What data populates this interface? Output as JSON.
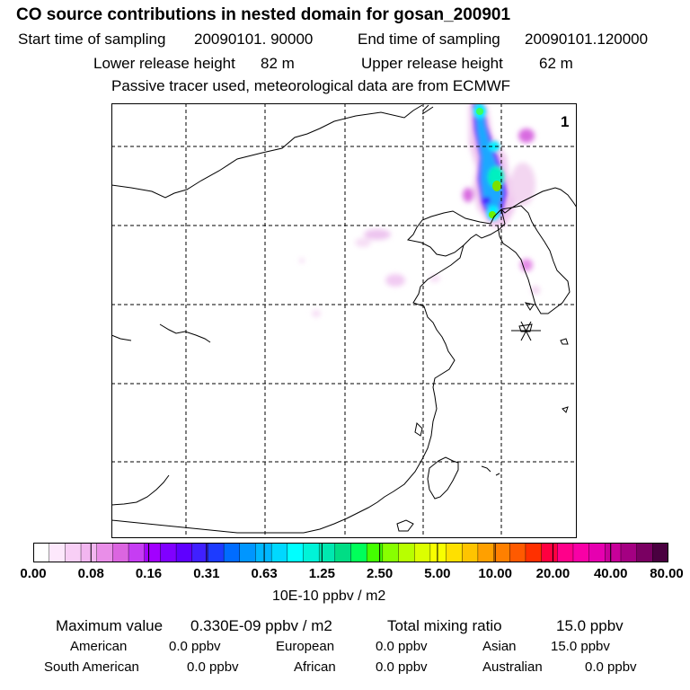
{
  "header": {
    "title": "CO  source contributions in nested domain for gosan_200901",
    "start_label": "Start time of sampling",
    "start_value": "20090101. 90000",
    "end_label": "End time of sampling",
    "end_value": "20090101.120000",
    "lower_label": "Lower release height",
    "lower_value": "82 m",
    "upper_label": "Upper release height",
    "upper_value": "62 m",
    "note": "Passive tracer used, meteorological data are from ECMWF"
  },
  "map": {
    "panel_label": "1",
    "receptor_marker": "asterisk-station-icon"
  },
  "legend": {
    "colors": [
      "#ffffff",
      "#fde8fc",
      "#f8cff6",
      "#f2b6f0",
      "#e98ee8",
      "#db65e0",
      "#c63df3",
      "#a200ff",
      "#8000ff",
      "#5f00ff",
      "#4020ff",
      "#1d3bff",
      "#006cff",
      "#0096ff",
      "#00b7ff",
      "#00d8ff",
      "#00ffff",
      "#00f3d8",
      "#00e8b0",
      "#00dd85",
      "#00ff5a",
      "#44ff00",
      "#88ff00",
      "#b8ff00",
      "#dcff00",
      "#f8ff00",
      "#ffe000",
      "#ffc400",
      "#ffa000",
      "#ff8000",
      "#ff5a00",
      "#ff3000",
      "#ff0040",
      "#ff008a",
      "#f800a6",
      "#e600b0",
      "#c8009a",
      "#a40082",
      "#7a0062",
      "#4a0040"
    ],
    "ticks": [
      "0.00",
      "0.08",
      "0.16",
      "0.31",
      "0.63",
      "1.25",
      "2.50",
      "5.00",
      "10.00",
      "20.00",
      "40.00",
      "80.00"
    ],
    "unit": "10E-10 ppbv / m2"
  },
  "summary": {
    "max_label": "Maximum value",
    "max_value": "0.330E-09 ppbv / m2",
    "total_label": "Total mixing ratio",
    "total_value": "15.0 ppbv",
    "american_label": "American",
    "american_value": "0.0 ppbv",
    "european_label": "European",
    "european_value": "0.0 ppbv",
    "asian_label": "Asian",
    "asian_value": "15.0 ppbv",
    "south_american_label": "South American",
    "south_american_value": "0.0 ppbv",
    "african_label": "African",
    "african_value": "0.0 ppbv",
    "australian_label": "Australian",
    "australian_value": "0.0 ppbv"
  }
}
